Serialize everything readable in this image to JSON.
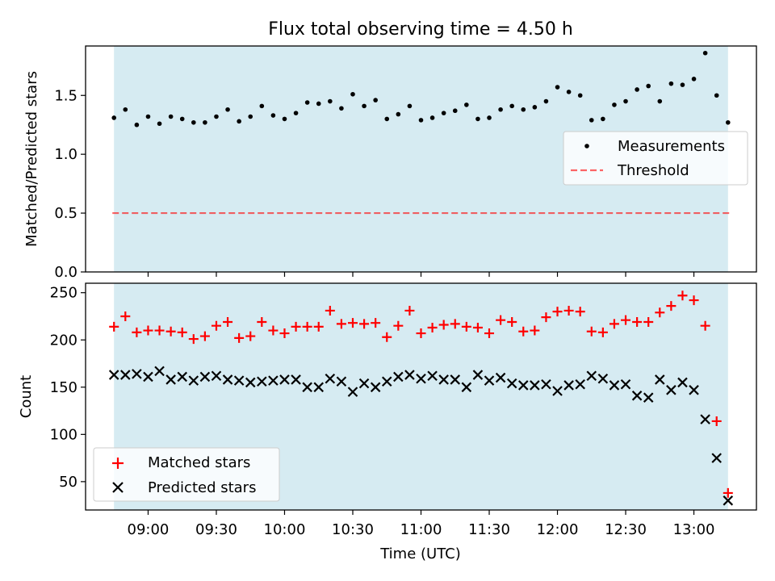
{
  "figure": {
    "title": "Flux total observing time = 4.50 h",
    "xlabel": "Time (UTC)",
    "time_ticks": [
      "09:00",
      "09:30",
      "10:00",
      "10:30",
      "11:00",
      "11:30",
      "12:00",
      "12:30",
      "13:00"
    ],
    "shaded_span": {
      "start": "08:45",
      "end": "13:15",
      "color": "#add8e6"
    }
  },
  "chart_data": [
    {
      "type": "scatter",
      "name": "ratio",
      "title": "Flux total observing time = 4.50 h",
      "xlabel": "",
      "ylabel": "Matched/Predicted stars",
      "ylim": [
        0,
        1.92
      ],
      "yticks": [
        0.0,
        0.5,
        1.0,
        1.5
      ],
      "ytick_labels": [
        "0.0",
        "0.5",
        "1.0",
        "1.5"
      ],
      "x_minutes_after_midnight": [
        525,
        530,
        535,
        540,
        545,
        550,
        555,
        560,
        565,
        570,
        575,
        580,
        585,
        590,
        595,
        600,
        605,
        610,
        615,
        620,
        625,
        630,
        635,
        640,
        645,
        650,
        655,
        660,
        665,
        670,
        675,
        680,
        685,
        690,
        695,
        700,
        705,
        710,
        715,
        720,
        725,
        730,
        735,
        740,
        745,
        750,
        755,
        760,
        765,
        770,
        775,
        780,
        785,
        790,
        795
      ],
      "series": [
        {
          "name": "Measurements",
          "color": "#000000",
          "marker": "dot",
          "values": [
            1.31,
            1.38,
            1.25,
            1.32,
            1.26,
            1.32,
            1.3,
            1.27,
            1.27,
            1.32,
            1.38,
            1.28,
            1.32,
            1.41,
            1.33,
            1.3,
            1.35,
            1.44,
            1.43,
            1.45,
            1.39,
            1.51,
            1.41,
            1.46,
            1.3,
            1.34,
            1.41,
            1.29,
            1.31,
            1.35,
            1.37,
            1.42,
            1.3,
            1.31,
            1.38,
            1.41,
            1.38,
            1.4,
            1.45,
            1.57,
            1.53,
            1.5,
            1.29,
            1.3,
            1.42,
            1.45,
            1.55,
            1.58,
            1.45,
            1.6,
            1.59,
            1.64,
            1.86,
            1.5,
            1.27
          ]
        }
      ],
      "threshold": {
        "name": "Threshold",
        "value": 0.5,
        "color": "#ff0000"
      },
      "legend": {
        "location": "center-right",
        "entries": [
          "Measurements",
          "Threshold"
        ]
      }
    },
    {
      "type": "scatter",
      "name": "counts",
      "xlabel": "Time (UTC)",
      "ylabel": "Count",
      "ylim": [
        20,
        260
      ],
      "yticks": [
        50,
        100,
        150,
        200,
        250
      ],
      "ytick_labels": [
        "50",
        "100",
        "150",
        "200",
        "250"
      ],
      "x_minutes_after_midnight": [
        525,
        530,
        535,
        540,
        545,
        550,
        555,
        560,
        565,
        570,
        575,
        580,
        585,
        590,
        595,
        600,
        605,
        610,
        615,
        620,
        625,
        630,
        635,
        640,
        645,
        650,
        655,
        660,
        665,
        670,
        675,
        680,
        685,
        690,
        695,
        700,
        705,
        710,
        715,
        720,
        725,
        730,
        735,
        740,
        745,
        750,
        755,
        760,
        765,
        770,
        775,
        780,
        785,
        790,
        795
      ],
      "series": [
        {
          "name": "Matched stars",
          "color": "#ff0000",
          "marker": "plus",
          "values": [
            214,
            225,
            208,
            210,
            210,
            209,
            208,
            201,
            204,
            215,
            219,
            202,
            204,
            219,
            210,
            207,
            214,
            214,
            214,
            231,
            217,
            218,
            217,
            218,
            203,
            215,
            231,
            207,
            213,
            216,
            217,
            214,
            213,
            207,
            221,
            219,
            209,
            210,
            224,
            230,
            231,
            230,
            209,
            208,
            217,
            221,
            219,
            219,
            229,
            236,
            247,
            242,
            215,
            114,
            38
          ]
        },
        {
          "name": "Predicted stars",
          "color": "#000000",
          "marker": "x",
          "values": [
            163,
            163,
            164,
            161,
            167,
            158,
            161,
            157,
            161,
            162,
            158,
            157,
            155,
            156,
            157,
            158,
            158,
            150,
            150,
            159,
            156,
            145,
            154,
            150,
            156,
            161,
            163,
            159,
            162,
            158,
            158,
            150,
            163,
            157,
            160,
            154,
            152,
            152,
            153,
            146,
            152,
            153,
            162,
            159,
            152,
            153,
            141,
            139,
            158,
            147,
            155,
            147,
            116,
            75,
            30
          ]
        }
      ],
      "legend": {
        "location": "bottom-left",
        "entries": [
          "Matched stars",
          "Predicted stars"
        ]
      }
    }
  ]
}
